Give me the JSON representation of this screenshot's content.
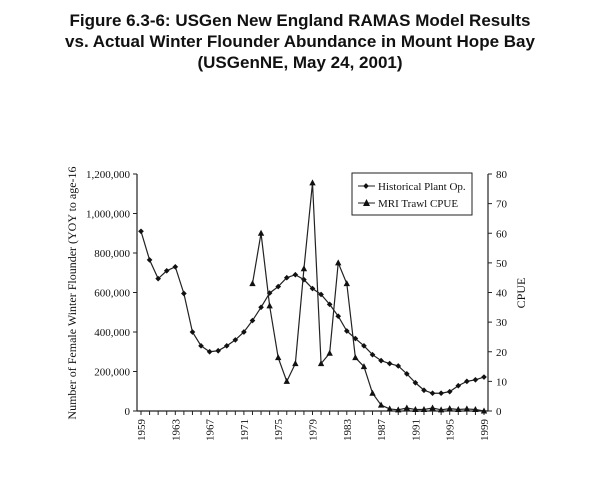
{
  "chart_data": {
    "type": "line",
    "title": [
      "Figure 6.3-6:  USGen New England RAMAS Model Results",
      "vs. Actual Winter Flounder Abundance in Mount Hope Bay",
      "(USGenNE, May 24, 2001)"
    ],
    "xlabel": "",
    "ylabel": "Number of Female Winter Flounder (YOY to age-16",
    "y2label": "CPUE",
    "xlim": [
      1959,
      1999
    ],
    "ylim": [
      0,
      1200000
    ],
    "y2lim": [
      0,
      80
    ],
    "xticks": [
      "1959",
      "1963",
      "1967",
      "1971",
      "1975",
      "1979",
      "1983",
      "1987",
      "1991",
      "1995",
      "1999"
    ],
    "yticks": [
      "0",
      "200,000",
      "400,000",
      "600,000",
      "800,000",
      "1,000,000",
      "1,200,000"
    ],
    "y2ticks": [
      "0",
      "10",
      "20",
      "30",
      "40",
      "50",
      "60",
      "70",
      "80"
    ],
    "legend_position": "top-right",
    "series": [
      {
        "name": "Historical Plant Op.",
        "axis": "left",
        "marker": "diamond",
        "x": [
          1959,
          1960,
          1961,
          1962,
          1963,
          1964,
          1965,
          1966,
          1967,
          1968,
          1969,
          1970,
          1971,
          1972,
          1973,
          1974,
          1975,
          1976,
          1977,
          1978,
          1979,
          1980,
          1981,
          1982,
          1983,
          1984,
          1985,
          1986,
          1987,
          1988,
          1989,
          1990,
          1991,
          1992,
          1993,
          1994,
          1995,
          1996,
          1997,
          1998,
          1999
        ],
        "values": [
          910000,
          765000,
          670000,
          710000,
          730000,
          595000,
          400000,
          330000,
          300000,
          305000,
          330000,
          360000,
          400000,
          458000,
          525000,
          597000,
          630000,
          675000,
          690000,
          665000,
          620000,
          590000,
          540000,
          480000,
          405000,
          367000,
          330000,
          285000,
          255000,
          240000,
          228000,
          188000,
          143000,
          105000,
          90000,
          90000,
          98000,
          128000,
          150000,
          158000,
          172000
        ]
      },
      {
        "name": "MRI Trawl CPUE",
        "axis": "right",
        "marker": "triangle",
        "x": [
          1972,
          1973,
          1974,
          1975,
          1976,
          1977,
          1978,
          1979,
          1980,
          1981,
          1982,
          1983,
          1984,
          1985,
          1986,
          1987,
          1988,
          1989,
          1990,
          1991,
          1992,
          1993,
          1994,
          1995,
          1996,
          1997,
          1998,
          1999
        ],
        "values": [
          43,
          60,
          35.5,
          18,
          10,
          16,
          48,
          77,
          16,
          19.5,
          50,
          43,
          18,
          15,
          6,
          2,
          0.7,
          0.4,
          1,
          0.5,
          0.5,
          1,
          0.4,
          0.8,
          0.5,
          0.7,
          0.5,
          0
        ]
      }
    ]
  }
}
